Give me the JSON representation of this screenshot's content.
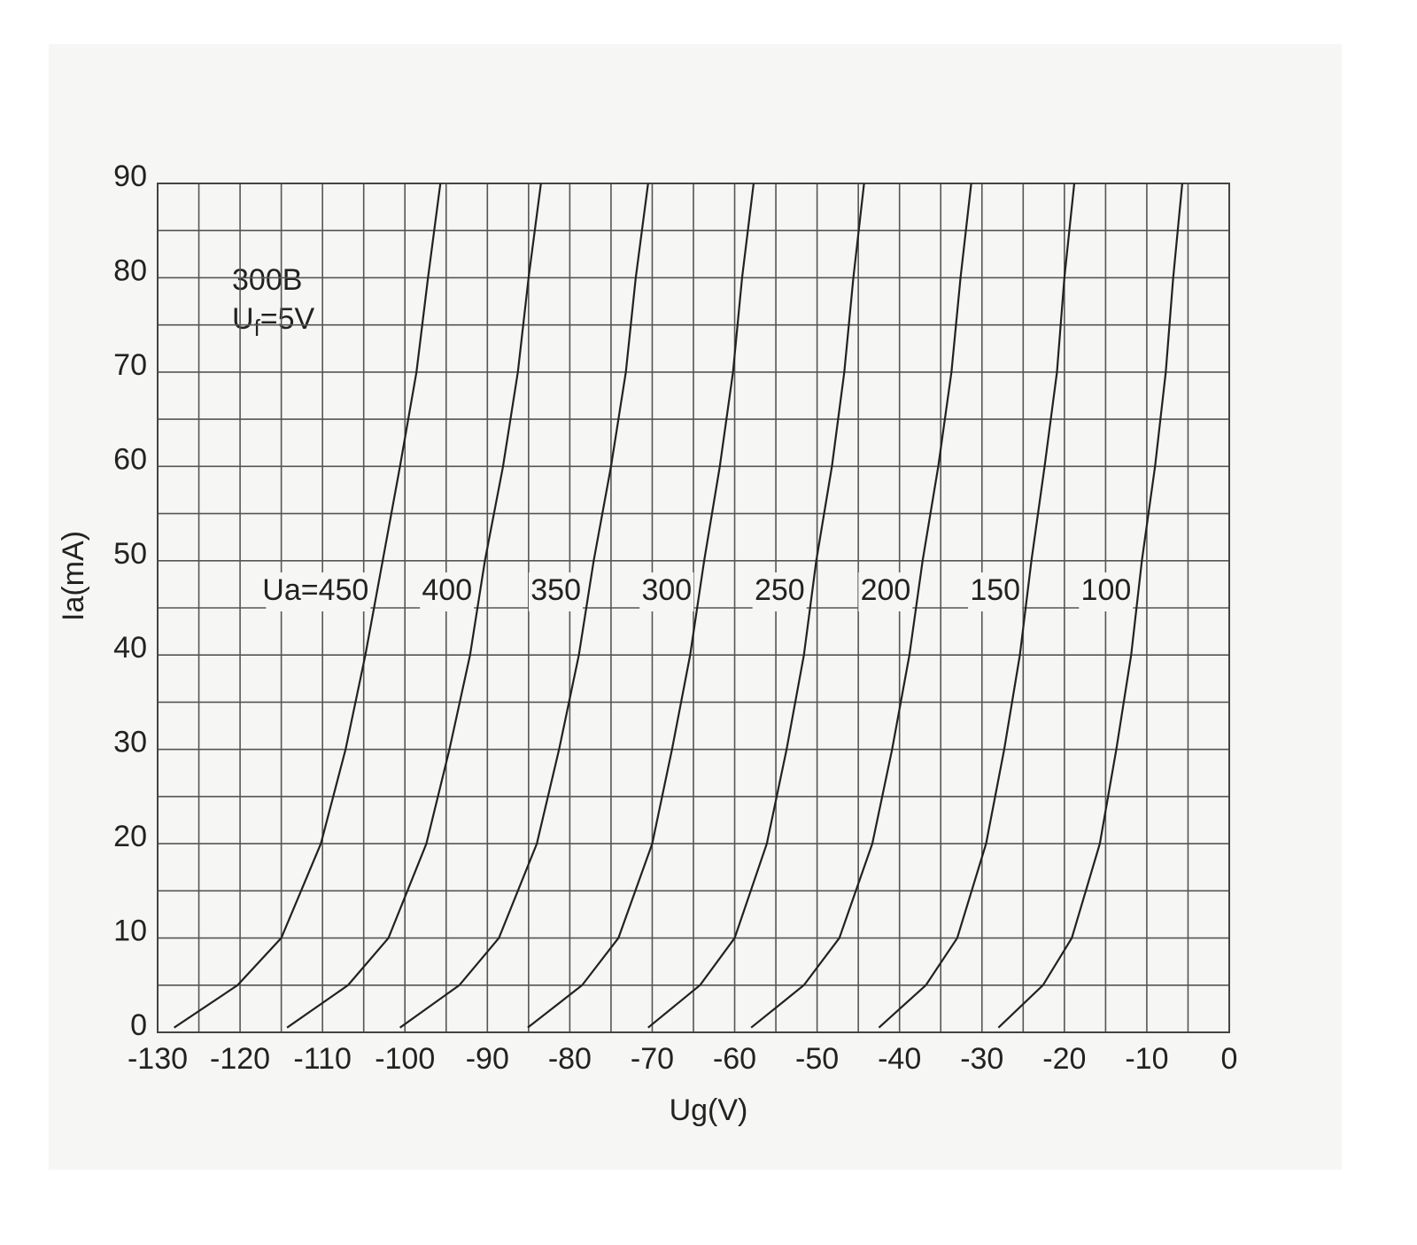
{
  "chart_data": {
    "type": "line",
    "xlabel": "Ug(V)",
    "ylabel": "Ia(mA)",
    "annotation": {
      "tube": "300B",
      "base": "U",
      "sub": "f",
      "rest": "=5V"
    },
    "xlim": [
      -130,
      0
    ],
    "xticks": [
      -130,
      -120,
      -110,
      -100,
      -90,
      -80,
      -70,
      -60,
      -50,
      -40,
      -30,
      -20,
      -10,
      0
    ],
    "ylim": [
      0,
      90
    ],
    "yticks": [
      0,
      10,
      20,
      30,
      40,
      50,
      60,
      70,
      80,
      90
    ],
    "xminor": [
      -125,
      -115,
      -105,
      -95,
      -85,
      -75,
      -65,
      -55,
      -45,
      -35,
      -25,
      -15,
      -5
    ],
    "yminor": [
      5,
      15,
      25,
      35,
      45,
      55,
      65,
      75,
      85
    ],
    "grid": true,
    "series": [
      {
        "name": "Ua=450",
        "color": "#222222",
        "x": [
          -128,
          -120.3,
          -115,
          -110.2,
          -107.2,
          -104.8,
          -102.7,
          -100.6,
          -98.6,
          -97.2,
          -95.7
        ],
        "values": [
          0.5,
          5,
          10,
          20,
          30,
          40,
          50,
          60,
          70,
          80,
          90
        ]
      },
      {
        "name": "400",
        "color": "#222222",
        "x": [
          -114.3,
          -106.9,
          -102,
          -97.4,
          -94.6,
          -92.1,
          -90.3,
          -88.1,
          -86.3,
          -85,
          -83.5
        ],
        "values": [
          0.5,
          5,
          10,
          20,
          30,
          40,
          50,
          60,
          70,
          80,
          90
        ]
      },
      {
        "name": "350",
        "color": "#222222",
        "x": [
          -100.6,
          -93.4,
          -88.6,
          -84,
          -81.3,
          -78.9,
          -77.1,
          -75,
          -73.2,
          -72,
          -70.5
        ],
        "values": [
          0.5,
          5,
          10,
          20,
          30,
          40,
          50,
          60,
          70,
          80,
          90
        ]
      },
      {
        "name": "300",
        "color": "#222222",
        "x": [
          -85.1,
          -78.5,
          -74.1,
          -70,
          -67.6,
          -65.4,
          -63.7,
          -61.8,
          -60.2,
          -59.1,
          -57.7
        ],
        "values": [
          0.5,
          5,
          10,
          20,
          30,
          40,
          50,
          60,
          70,
          80,
          90
        ]
      },
      {
        "name": "250",
        "color": "#222222",
        "x": [
          -70.5,
          -64.2,
          -60,
          -56.1,
          -53.7,
          -51.6,
          -50.1,
          -48.2,
          -46.7,
          -45.6,
          -44.3
        ],
        "values": [
          0.5,
          5,
          10,
          20,
          30,
          40,
          50,
          60,
          70,
          80,
          90
        ]
      },
      {
        "name": "200",
        "color": "#222222",
        "x": [
          -58,
          -51.6,
          -47.3,
          -43.3,
          -40.9,
          -38.8,
          -37.2,
          -35.3,
          -33.7,
          -32.6,
          -31.3
        ],
        "values": [
          0.5,
          5,
          10,
          20,
          30,
          40,
          50,
          60,
          70,
          80,
          90
        ]
      },
      {
        "name": "150",
        "color": "#222222",
        "x": [
          -42.5,
          -36.8,
          -33,
          -29.5,
          -27.3,
          -25.4,
          -24,
          -22.4,
          -20.9,
          -20,
          -18.8
        ],
        "values": [
          0.5,
          5,
          10,
          20,
          30,
          40,
          50,
          60,
          70,
          80,
          90
        ]
      },
      {
        "name": "100",
        "color": "#222222",
        "x": [
          -28,
          -22.6,
          -19.1,
          -15.7,
          -13.7,
          -11.9,
          -10.6,
          -9,
          -7.7,
          -6.8,
          -5.7
        ],
        "values": [
          0.5,
          5,
          10,
          20,
          30,
          40,
          50,
          60,
          70,
          80,
          90
        ]
      }
    ]
  }
}
